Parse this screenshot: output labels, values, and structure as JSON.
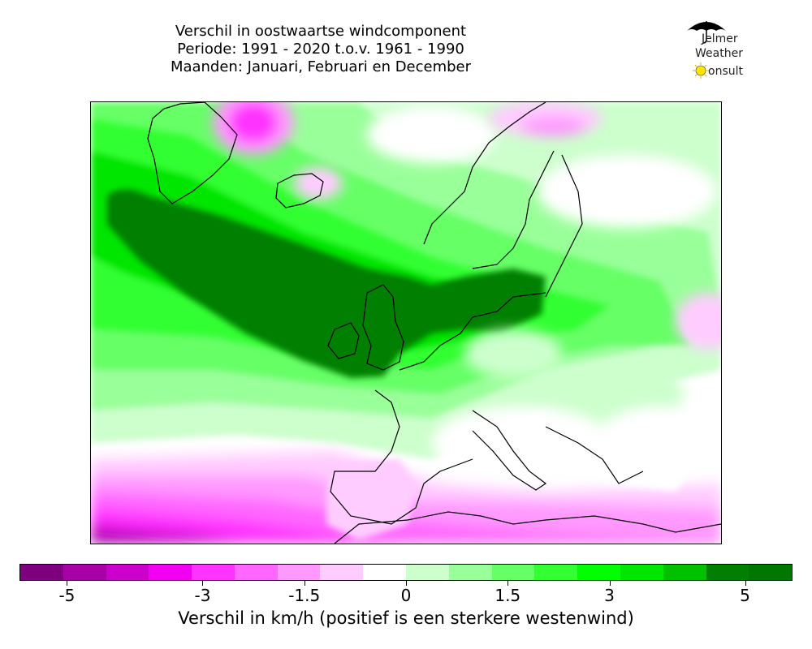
{
  "title": {
    "line1": "Verschil in oostwaartse windcomponent",
    "line2": "Periode: 1991 - 2020 t.o.v. 1961 - 1990",
    "line3": "Maanden: Januari, Februari en December"
  },
  "logo": {
    "line1": "Jelmer",
    "line2": "Weather",
    "line3": "onsult"
  },
  "colorbar": {
    "colors": [
      "#7f007f",
      "#a600a6",
      "#cc00cc",
      "#f200f2",
      "#ff33ff",
      "#ff66ff",
      "#ff99ff",
      "#ffccff",
      "#ffffff",
      "#ccffcc",
      "#99ff99",
      "#66ff66",
      "#33ff33",
      "#00ff00",
      "#00e600",
      "#00c000",
      "#007f00",
      "#007700"
    ],
    "tick_labels": [
      "-5",
      "-3",
      "-1.5",
      "0",
      "1.5",
      "3",
      "5"
    ],
    "tick_values": [
      -5,
      -3,
      -1.5,
      0,
      1.5,
      3,
      5
    ],
    "label": "Verschil in km/h (positief is een sterkere westenwind)"
  },
  "map": {
    "land_outline_color": "#000000",
    "strong_positive_color": "#007f00",
    "negative_color": "#ff66ff"
  }
}
